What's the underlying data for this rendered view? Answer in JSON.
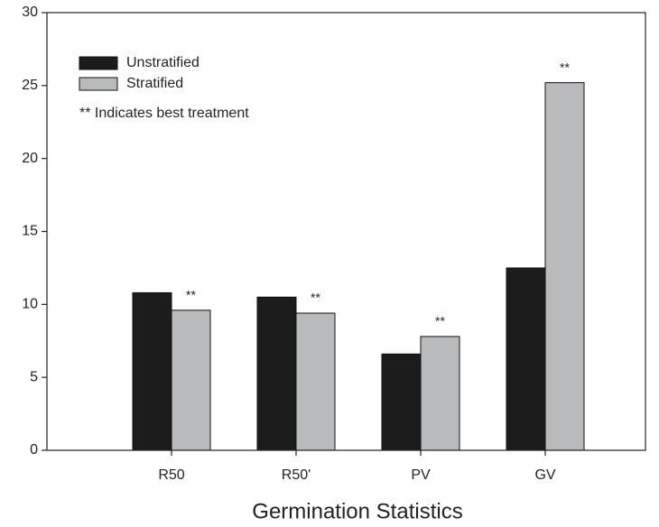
{
  "chart_data": {
    "type": "bar",
    "x_label": "Germination Statistics",
    "categories": [
      "R50",
      "R50'",
      "PV",
      "GV"
    ],
    "series": [
      {
        "name": "Unstratified",
        "color": "#1c1c1c",
        "values": [
          10.8,
          10.5,
          6.6,
          12.5
        ]
      },
      {
        "name": "Stratified",
        "color": "#b9babc",
        "values": [
          9.6,
          9.4,
          7.8,
          25.2
        ]
      }
    ],
    "annotations": [
      "**",
      "**",
      "**",
      "**"
    ],
    "note": "** Indicates best treatment",
    "ylim": [
      0,
      30
    ],
    "yticks": [
      0,
      5,
      10,
      15,
      20,
      25,
      30
    ],
    "legend": "upper left"
  }
}
